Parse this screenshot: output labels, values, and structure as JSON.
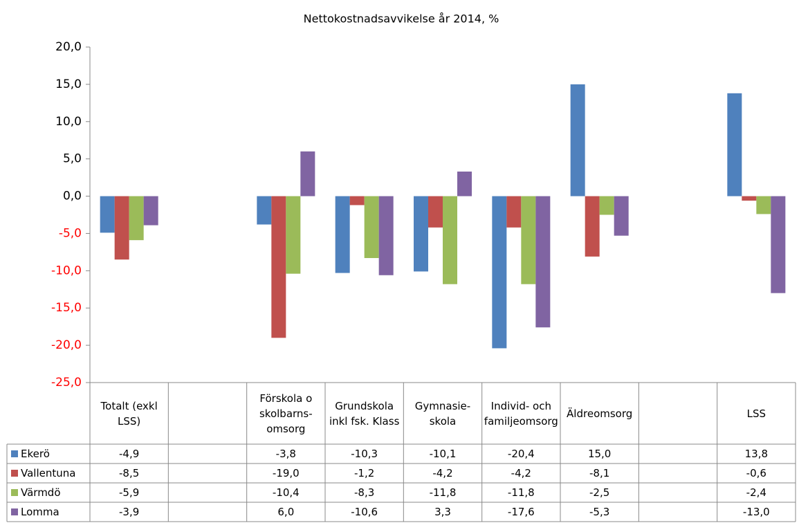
{
  "chart_data": {
    "type": "bar",
    "title": "Nettokostnadsavvikelse år 2014, %",
    "categories": [
      "Totalt (exkl LSS)",
      null,
      "Förskola o skolbarns-omsorg",
      "Grundskola inkl fsk. Klass",
      "Gymnasie-skola",
      "Individ- och familjeomsorg",
      "Äldreomsorg",
      null,
      "LSS"
    ],
    "series": [
      {
        "name": "Ekerö",
        "color": "#4f81bd",
        "values": [
          -4.9,
          null,
          -3.8,
          -10.3,
          -10.1,
          -20.4,
          15.0,
          null,
          13.8
        ],
        "value_labels": [
          "-4,9",
          null,
          "-3,8",
          "-10,3",
          "-10,1",
          "-20,4",
          "15,0",
          null,
          "13,8"
        ]
      },
      {
        "name": "Vallentuna",
        "color": "#c0504d",
        "values": [
          -8.5,
          null,
          -19.0,
          -1.2,
          -4.2,
          -4.2,
          -8.1,
          null,
          -0.6
        ],
        "value_labels": [
          "-8,5",
          null,
          "-19,0",
          "-1,2",
          "-4,2",
          "-4,2",
          "-8,1",
          null,
          "-0,6"
        ]
      },
      {
        "name": "Värmdö",
        "color": "#9bbb59",
        "values": [
          -5.9,
          null,
          -10.4,
          -8.3,
          -11.8,
          -11.8,
          -2.5,
          null,
          -2.4
        ],
        "value_labels": [
          "-5,9",
          null,
          "-10,4",
          "-8,3",
          "-11,8",
          "-11,8",
          "-2,5",
          null,
          "-2,4"
        ]
      },
      {
        "name": "Lomma",
        "color": "#8064a2",
        "values": [
          -3.9,
          null,
          6.0,
          -10.6,
          3.3,
          -17.6,
          -5.3,
          null,
          -13.0
        ],
        "value_labels": [
          "-3,9",
          null,
          "6,0",
          "-10,6",
          "3,3",
          "-17,6",
          "-5,3",
          null,
          "-13,0"
        ]
      }
    ],
    "ylim": [
      -25,
      20
    ],
    "yticks": [
      {
        "value": -25,
        "label": "-25,0"
      },
      {
        "value": -20,
        "label": "-20,0"
      },
      {
        "value": -15,
        "label": "-15,0"
      },
      {
        "value": -10,
        "label": "-10,0"
      },
      {
        "value": -5,
        "label": "-5,0"
      },
      {
        "value": 0,
        "label": "0,0"
      },
      {
        "value": 5,
        "label": "5,0"
      },
      {
        "value": 10,
        "label": "10,0"
      },
      {
        "value": 15,
        "label": "15,0"
      },
      {
        "value": 20,
        "label": "20,0"
      }
    ],
    "negative_tick_color": "#ff0000",
    "grid": false
  }
}
